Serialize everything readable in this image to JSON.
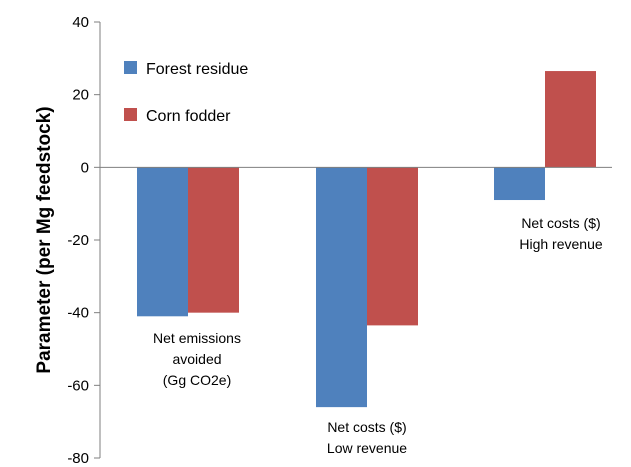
{
  "chart_data": {
    "type": "bar",
    "categories": [
      "Net emissions avoided (Gg CO2e)",
      "Net costs ($) Low revenue",
      "Net costs ($) High revenue"
    ],
    "series": [
      {
        "name": "Forest residue",
        "color": "#4F81BD",
        "values": [
          -41,
          -66,
          -9
        ]
      },
      {
        "name": "Corn fodder",
        "color": "#C0504D",
        "values": [
          -40,
          -43.5,
          26.5
        ]
      }
    ],
    "title": "",
    "xlabel": "",
    "ylabel": "Parameter (per Mg feedstock)",
    "ylim": [
      -80,
      40
    ],
    "yticks": [
      "40",
      "20",
      "0",
      "-20",
      "-40",
      "-60",
      "-80"
    ],
    "grid": false,
    "legend_position": "top-left",
    "annotations": [
      {
        "lines": [
          "Net emissions",
          "avoided",
          "(Gg CO2e)"
        ]
      },
      {
        "lines": [
          "Net costs ($)",
          "Low revenue"
        ]
      },
      {
        "lines": [
          "Net costs ($)",
          "High revenue"
        ]
      }
    ]
  }
}
